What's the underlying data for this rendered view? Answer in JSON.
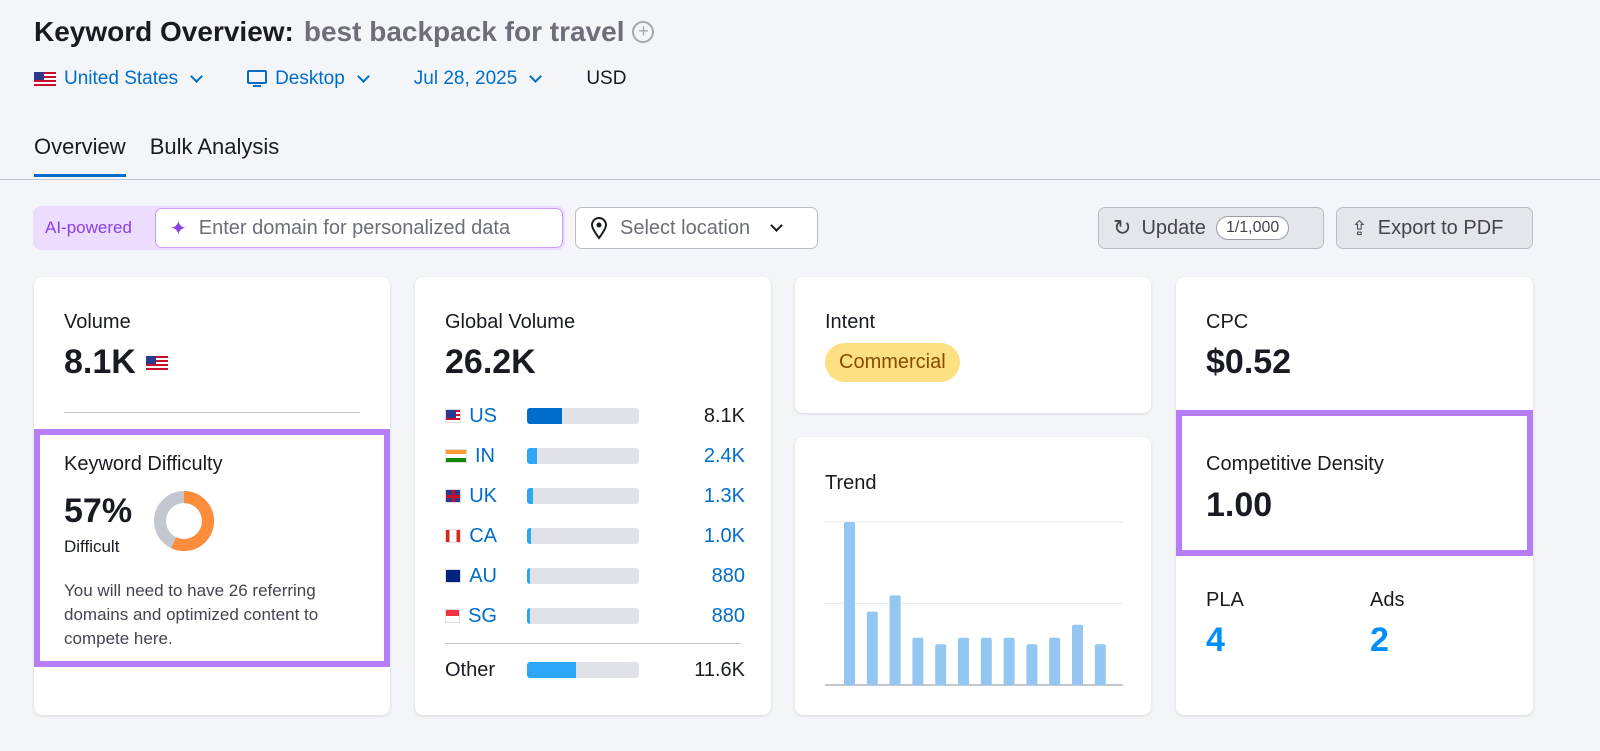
{
  "header": {
    "title": "Keyword Overview:",
    "keyword": "best backpack for travel"
  },
  "filters": {
    "country": "United States",
    "device": "Desktop",
    "date": "Jul 28, 2025",
    "currency": "USD"
  },
  "tabs": [
    {
      "label": "Overview",
      "active": true
    },
    {
      "label": "Bulk Analysis",
      "active": false
    }
  ],
  "toolbar": {
    "ai_label": "AI-powered",
    "domain_placeholder": "Enter domain for personalized data",
    "location_placeholder": "Select location",
    "update_label": "Update",
    "update_count": "1/1,000",
    "export_label": "Export to PDF"
  },
  "volume": {
    "label": "Volume",
    "value": "8.1K"
  },
  "kd": {
    "label": "Keyword Difficulty",
    "value": "57%",
    "percent": 57,
    "level": "Difficult",
    "note": "You will need to have 26 referring domains and optimized content to compete here.",
    "color": "#ff8c3a"
  },
  "global": {
    "label": "Global Volume",
    "value": "26.2K",
    "countries": [
      {
        "code": "US",
        "value": "8.1K",
        "share": 31
      },
      {
        "code": "IN",
        "value": "2.4K",
        "share": 9
      },
      {
        "code": "UK",
        "value": "1.3K",
        "share": 5
      },
      {
        "code": "CA",
        "value": "1.0K",
        "share": 4
      },
      {
        "code": "AU",
        "value": "880",
        "share": 3
      },
      {
        "code": "SG",
        "value": "880",
        "share": 3
      }
    ],
    "other": {
      "label": "Other",
      "value": "11.6K",
      "share": 44
    }
  },
  "intent": {
    "label": "Intent",
    "value": "Commercial"
  },
  "trend": {
    "label": "Trend",
    "relative_values": [
      100,
      45,
      55,
      29,
      25,
      29,
      29,
      29,
      25,
      29,
      37,
      25
    ]
  },
  "cpc": {
    "label": "CPC",
    "value": "$0.52"
  },
  "density": {
    "label": "Competitive Density",
    "value": "1.00"
  },
  "pla": {
    "label": "PLA",
    "value": "4"
  },
  "ads": {
    "label": "Ads",
    "value": "2"
  }
}
